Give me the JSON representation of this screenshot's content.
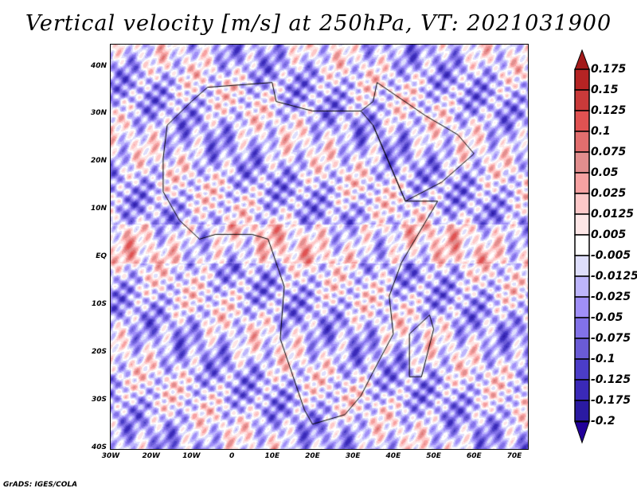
{
  "title": "Vertical velocity [m/s] at 250hPa, VT: 2021031900",
  "lat_labels": [
    "40N",
    "30N",
    "20N",
    "10N",
    "EQ",
    "10S",
    "20S",
    "30S",
    "40S"
  ],
  "lon_labels": [
    "30W",
    "20W",
    "10W",
    "0",
    "10E",
    "20E",
    "30E",
    "40E",
    "50E",
    "60E",
    "70E"
  ],
  "colorbar": {
    "labels": [
      "0.175",
      "0.15",
      "0.125",
      "0.1",
      "0.075",
      "0.05",
      "0.025",
      "0.0125",
      "0.005",
      "-0.005",
      "-0.0125",
      "-0.025",
      "-0.05",
      "-0.075",
      "-0.1",
      "-0.125",
      "-0.175",
      "-0.2"
    ],
    "colors": [
      "#a31a1a",
      "#b52424",
      "#c93a3a",
      "#e05252",
      "#e26e6e",
      "#e28e8e",
      "#f7a2a2",
      "#fdc8c8",
      "#fde6e6",
      "#ffffff",
      "#dedefc",
      "#bdb5fc",
      "#a08ff8",
      "#8272e8",
      "#6a5bd6",
      "#4b3dc8",
      "#3a29b8",
      "#2a1aa2",
      "#22009a"
    ]
  },
  "credit": "GrADS: IGES/COLA"
}
